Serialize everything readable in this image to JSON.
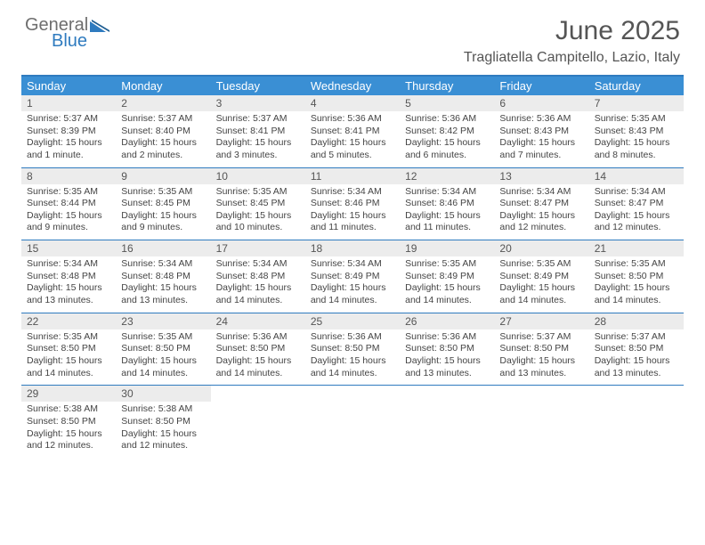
{
  "brand": {
    "part1": "General",
    "part2": "Blue"
  },
  "title": "June 2025",
  "location": "Tragliatella Campitello, Lazio, Italy",
  "colors": {
    "header_bar": "#3a8fd4",
    "header_border": "#2f7bbf",
    "daynum_bg": "#ececec",
    "text": "#444444",
    "brand_gray": "#6e6e6e",
    "brand_blue": "#2f7bbf"
  },
  "dow": [
    "Sunday",
    "Monday",
    "Tuesday",
    "Wednesday",
    "Thursday",
    "Friday",
    "Saturday"
  ],
  "weeks": [
    [
      {
        "n": "1",
        "sr": "5:37 AM",
        "ss": "8:39 PM",
        "dl": "15 hours and 1 minute."
      },
      {
        "n": "2",
        "sr": "5:37 AM",
        "ss": "8:40 PM",
        "dl": "15 hours and 2 minutes."
      },
      {
        "n": "3",
        "sr": "5:37 AM",
        "ss": "8:41 PM",
        "dl": "15 hours and 3 minutes."
      },
      {
        "n": "4",
        "sr": "5:36 AM",
        "ss": "8:41 PM",
        "dl": "15 hours and 5 minutes."
      },
      {
        "n": "5",
        "sr": "5:36 AM",
        "ss": "8:42 PM",
        "dl": "15 hours and 6 minutes."
      },
      {
        "n": "6",
        "sr": "5:36 AM",
        "ss": "8:43 PM",
        "dl": "15 hours and 7 minutes."
      },
      {
        "n": "7",
        "sr": "5:35 AM",
        "ss": "8:43 PM",
        "dl": "15 hours and 8 minutes."
      }
    ],
    [
      {
        "n": "8",
        "sr": "5:35 AM",
        "ss": "8:44 PM",
        "dl": "15 hours and 9 minutes."
      },
      {
        "n": "9",
        "sr": "5:35 AM",
        "ss": "8:45 PM",
        "dl": "15 hours and 9 minutes."
      },
      {
        "n": "10",
        "sr": "5:35 AM",
        "ss": "8:45 PM",
        "dl": "15 hours and 10 minutes."
      },
      {
        "n": "11",
        "sr": "5:34 AM",
        "ss": "8:46 PM",
        "dl": "15 hours and 11 minutes."
      },
      {
        "n": "12",
        "sr": "5:34 AM",
        "ss": "8:46 PM",
        "dl": "15 hours and 11 minutes."
      },
      {
        "n": "13",
        "sr": "5:34 AM",
        "ss": "8:47 PM",
        "dl": "15 hours and 12 minutes."
      },
      {
        "n": "14",
        "sr": "5:34 AM",
        "ss": "8:47 PM",
        "dl": "15 hours and 12 minutes."
      }
    ],
    [
      {
        "n": "15",
        "sr": "5:34 AM",
        "ss": "8:48 PM",
        "dl": "15 hours and 13 minutes."
      },
      {
        "n": "16",
        "sr": "5:34 AM",
        "ss": "8:48 PM",
        "dl": "15 hours and 13 minutes."
      },
      {
        "n": "17",
        "sr": "5:34 AM",
        "ss": "8:48 PM",
        "dl": "15 hours and 14 minutes."
      },
      {
        "n": "18",
        "sr": "5:34 AM",
        "ss": "8:49 PM",
        "dl": "15 hours and 14 minutes."
      },
      {
        "n": "19",
        "sr": "5:35 AM",
        "ss": "8:49 PM",
        "dl": "15 hours and 14 minutes."
      },
      {
        "n": "20",
        "sr": "5:35 AM",
        "ss": "8:49 PM",
        "dl": "15 hours and 14 minutes."
      },
      {
        "n": "21",
        "sr": "5:35 AM",
        "ss": "8:50 PM",
        "dl": "15 hours and 14 minutes."
      }
    ],
    [
      {
        "n": "22",
        "sr": "5:35 AM",
        "ss": "8:50 PM",
        "dl": "15 hours and 14 minutes."
      },
      {
        "n": "23",
        "sr": "5:35 AM",
        "ss": "8:50 PM",
        "dl": "15 hours and 14 minutes."
      },
      {
        "n": "24",
        "sr": "5:36 AM",
        "ss": "8:50 PM",
        "dl": "15 hours and 14 minutes."
      },
      {
        "n": "25",
        "sr": "5:36 AM",
        "ss": "8:50 PM",
        "dl": "15 hours and 14 minutes."
      },
      {
        "n": "26",
        "sr": "5:36 AM",
        "ss": "8:50 PM",
        "dl": "15 hours and 13 minutes."
      },
      {
        "n": "27",
        "sr": "5:37 AM",
        "ss": "8:50 PM",
        "dl": "15 hours and 13 minutes."
      },
      {
        "n": "28",
        "sr": "5:37 AM",
        "ss": "8:50 PM",
        "dl": "15 hours and 13 minutes."
      }
    ],
    [
      {
        "n": "29",
        "sr": "5:38 AM",
        "ss": "8:50 PM",
        "dl": "15 hours and 12 minutes."
      },
      {
        "n": "30",
        "sr": "5:38 AM",
        "ss": "8:50 PM",
        "dl": "15 hours and 12 minutes."
      },
      null,
      null,
      null,
      null,
      null
    ]
  ],
  "labels": {
    "sunrise": "Sunrise: ",
    "sunset": "Sunset: ",
    "daylight": "Daylight: "
  }
}
